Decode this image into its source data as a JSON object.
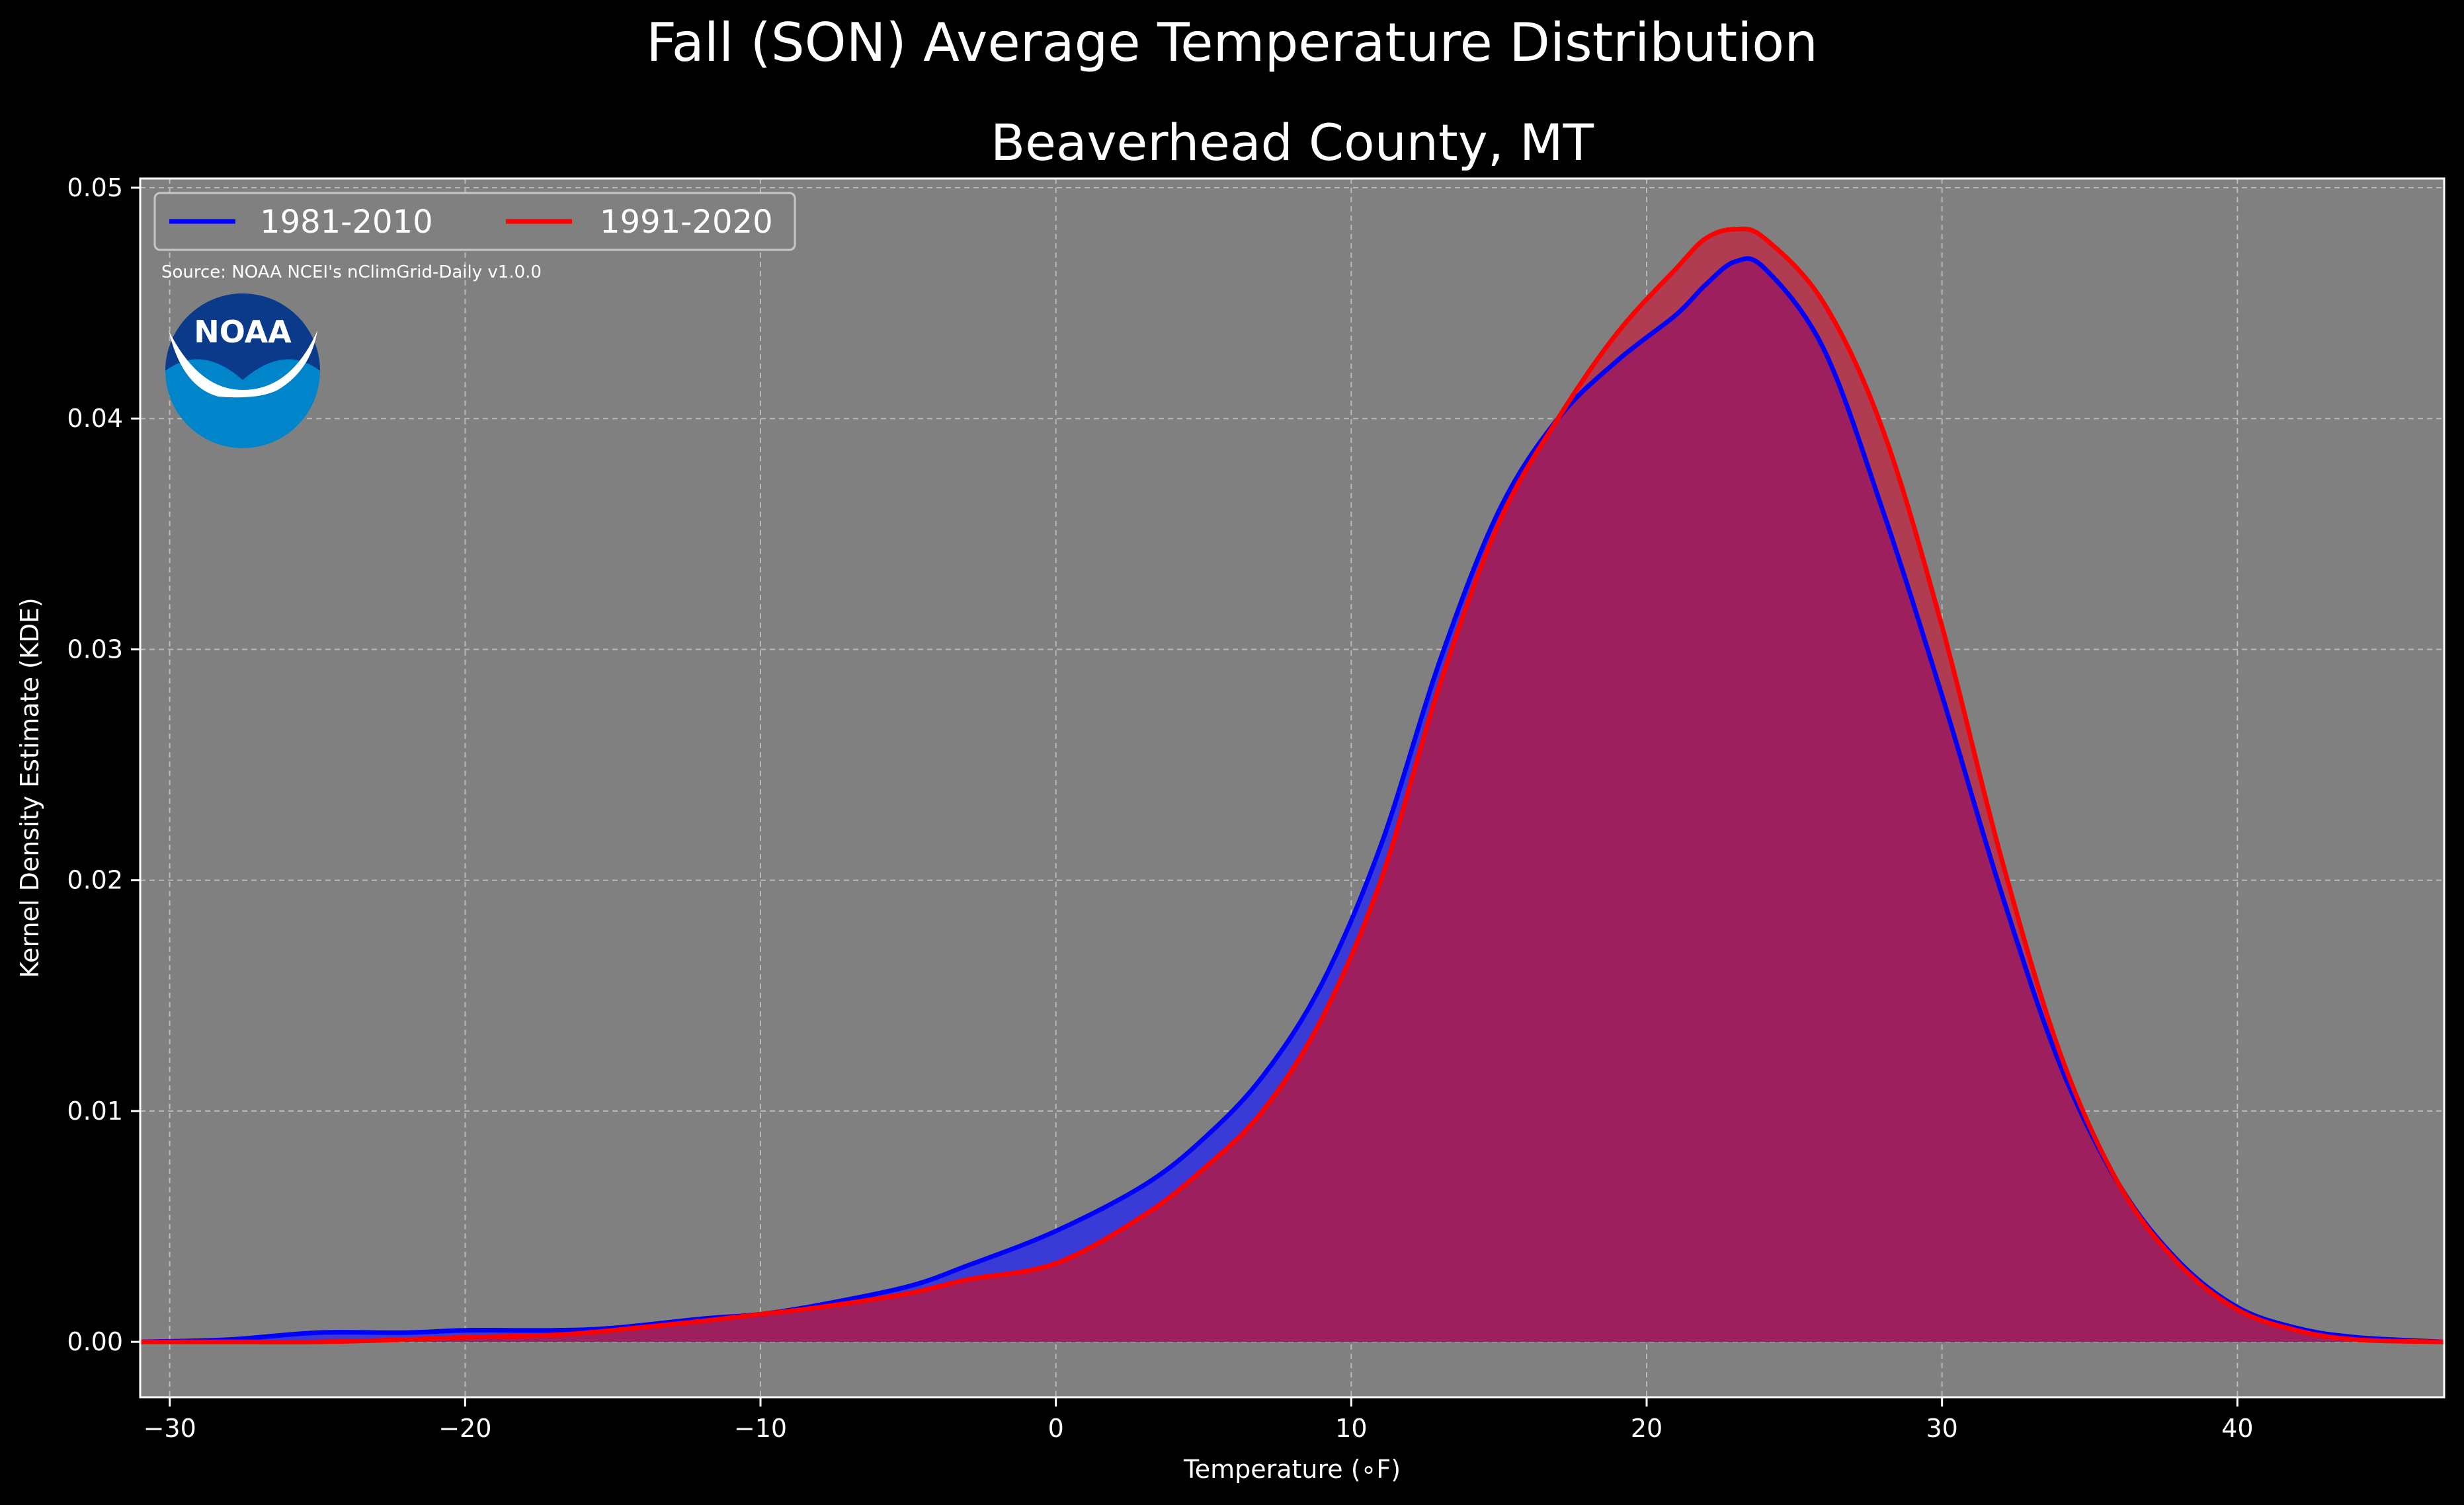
{
  "suptitle": "Fall (SON) Average Temperature Distribution",
  "axes_title": "Beaverhead County, MT",
  "source_note": "Source: NOAA NCEI's nClimGrid-Daily v1.0.0",
  "logo": {
    "text": "NOAA",
    "icon": "noaa-logo",
    "colors": {
      "dark": "#0b3a8b",
      "light": "#0085ca"
    }
  },
  "colors": {
    "figure_bg": "#000000",
    "axes_bg": "#808080",
    "series_1981": "#0000ff",
    "series_1991": "#ff0000",
    "fill_1981": "#3a3ad6",
    "fill_1991": "#b03c52",
    "overlap_fill": "#9d1f5d"
  },
  "chart_data": {
    "type": "area",
    "title": "Beaverhead County, MT",
    "xlabel": "Temperature (∘F)",
    "ylabel": "Kernel Density Estimate (KDE)",
    "xlim": [
      -31,
      47
    ],
    "ylim": [
      -0.0024,
      0.0504
    ],
    "xticks": [
      -30,
      -20,
      -10,
      0,
      10,
      20,
      30,
      40
    ],
    "xtick_labels": [
      "−30",
      "−20",
      "−10",
      "0",
      "10",
      "20",
      "30",
      "40"
    ],
    "yticks": [
      0.0,
      0.01,
      0.02,
      0.03,
      0.04,
      0.05
    ],
    "ytick_labels": [
      "0.00",
      "0.01",
      "0.02",
      "0.03",
      "0.04",
      "0.05"
    ],
    "grid": true,
    "legend": "top-left",
    "x": [
      -31,
      -28,
      -25,
      -22,
      -20,
      -17,
      -15,
      -12,
      -10,
      -8,
      -5,
      -3,
      0,
      3,
      5,
      7,
      9,
      11,
      13,
      15,
      17,
      19,
      21,
      22,
      23,
      24,
      26,
      28,
      30,
      32,
      34,
      36,
      38,
      40,
      42,
      44,
      47
    ],
    "series": [
      {
        "name": "1981-2010",
        "color": "#0000ff",
        "values": [
          0.0,
          0.0001,
          0.0004,
          0.0004,
          0.0005,
          0.0005,
          0.0006,
          0.001,
          0.0012,
          0.0016,
          0.0024,
          0.0033,
          0.0048,
          0.0068,
          0.0088,
          0.0115,
          0.0155,
          0.0215,
          0.0295,
          0.036,
          0.04,
          0.0425,
          0.0445,
          0.0458,
          0.0468,
          0.0465,
          0.043,
          0.036,
          0.028,
          0.0195,
          0.012,
          0.0068,
          0.0035,
          0.0015,
          0.0006,
          0.0002,
          0.0
        ]
      },
      {
        "name": "1991-2020",
        "color": "#ff0000",
        "values": [
          0.0,
          0.0,
          0.0,
          0.0001,
          0.0002,
          0.0003,
          0.0005,
          0.0009,
          0.0012,
          0.0015,
          0.0021,
          0.0027,
          0.0034,
          0.0055,
          0.0075,
          0.01,
          0.014,
          0.02,
          0.0285,
          0.0355,
          0.04,
          0.0437,
          0.0465,
          0.0478,
          0.0482,
          0.0478,
          0.045,
          0.0395,
          0.031,
          0.021,
          0.0125,
          0.0068,
          0.0034,
          0.0014,
          0.0005,
          0.0001,
          0.0
        ]
      }
    ]
  }
}
